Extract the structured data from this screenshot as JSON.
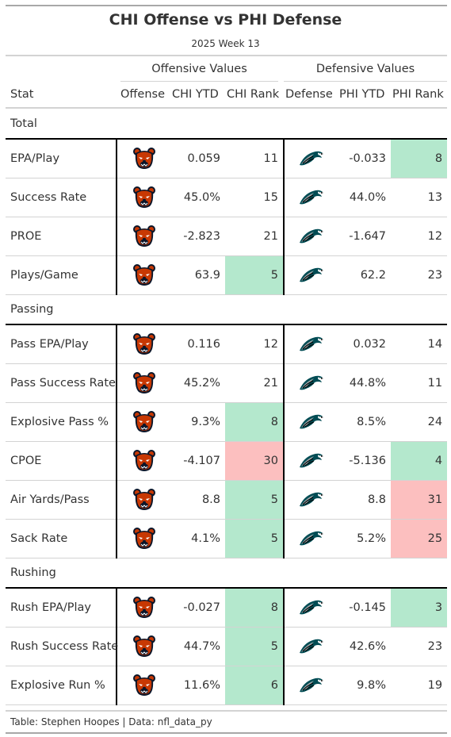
{
  "title": "CHI Offense vs PHI Defense",
  "subtitle": "2025 Week 13",
  "spanners": {
    "offense": "Offensive Values",
    "defense": "Defensive Values"
  },
  "columns": [
    "Stat",
    "Offense",
    "CHI YTD",
    "CHI Rank",
    "Defense",
    "PHI YTD",
    "PHI Rank"
  ],
  "logos": {
    "offense": "bears-logo-icon",
    "defense": "eagles-logo-icon"
  },
  "colors": {
    "good": "#b4e8cd",
    "bad": "#fcbfbf"
  },
  "groups": [
    {
      "label": "Total",
      "rows": [
        {
          "stat": "EPA/Play",
          "chi_ytd": "0.059",
          "chi_rank": "11",
          "chi_tone": "",
          "phi_ytd": "-0.033",
          "phi_rank": "8",
          "phi_tone": "good"
        },
        {
          "stat": "Success Rate",
          "chi_ytd": "45.0%",
          "chi_rank": "15",
          "chi_tone": "",
          "phi_ytd": "44.0%",
          "phi_rank": "13",
          "phi_tone": ""
        },
        {
          "stat": "PROE",
          "chi_ytd": "-2.823",
          "chi_rank": "21",
          "chi_tone": "",
          "phi_ytd": "-1.647",
          "phi_rank": "12",
          "phi_tone": ""
        },
        {
          "stat": "Plays/Game",
          "chi_ytd": "63.9",
          "chi_rank": "5",
          "chi_tone": "good",
          "phi_ytd": "62.2",
          "phi_rank": "23",
          "phi_tone": ""
        }
      ]
    },
    {
      "label": "Passing",
      "rows": [
        {
          "stat": "Pass EPA/Play",
          "chi_ytd": "0.116",
          "chi_rank": "12",
          "chi_tone": "",
          "phi_ytd": "0.032",
          "phi_rank": "14",
          "phi_tone": ""
        },
        {
          "stat": "Pass Success Rate",
          "chi_ytd": "45.2%",
          "chi_rank": "21",
          "chi_tone": "",
          "phi_ytd": "44.8%",
          "phi_rank": "11",
          "phi_tone": ""
        },
        {
          "stat": "Explosive Pass %",
          "chi_ytd": "9.3%",
          "chi_rank": "8",
          "chi_tone": "good",
          "phi_ytd": "8.5%",
          "phi_rank": "24",
          "phi_tone": ""
        },
        {
          "stat": "CPOE",
          "chi_ytd": "-4.107",
          "chi_rank": "30",
          "chi_tone": "bad",
          "phi_ytd": "-5.136",
          "phi_rank": "4",
          "phi_tone": "good"
        },
        {
          "stat": "Air Yards/Pass",
          "chi_ytd": "8.8",
          "chi_rank": "5",
          "chi_tone": "good",
          "phi_ytd": "8.8",
          "phi_rank": "31",
          "phi_tone": "bad"
        },
        {
          "stat": "Sack Rate",
          "chi_ytd": "4.1%",
          "chi_rank": "5",
          "chi_tone": "good",
          "phi_ytd": "5.2%",
          "phi_rank": "25",
          "phi_tone": "bad"
        }
      ]
    },
    {
      "label": "Rushing",
      "rows": [
        {
          "stat": "Rush EPA/Play",
          "chi_ytd": "-0.027",
          "chi_rank": "8",
          "chi_tone": "good",
          "phi_ytd": "-0.145",
          "phi_rank": "3",
          "phi_tone": "good"
        },
        {
          "stat": "Rush Success Rate",
          "chi_ytd": "44.7%",
          "chi_rank": "5",
          "chi_tone": "good",
          "phi_ytd": "42.6%",
          "phi_rank": "23",
          "phi_tone": ""
        },
        {
          "stat": "Explosive Run %",
          "chi_ytd": "11.6%",
          "chi_rank": "6",
          "chi_tone": "good",
          "phi_ytd": "9.8%",
          "phi_rank": "19",
          "phi_tone": ""
        }
      ]
    }
  ],
  "footer": "Table: Stephen Hoopes | Data: nfl_data_py"
}
